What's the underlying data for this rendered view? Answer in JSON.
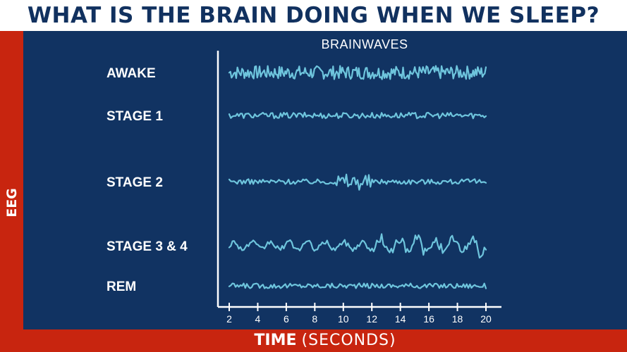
{
  "title": "WHAT IS THE BRAIN DOING WHEN WE SLEEP?",
  "left_label": "EEG",
  "x_axis_label": {
    "bold": "TIME",
    "light": "(SECONDS)"
  },
  "colors": {
    "title": "#11315f",
    "panel": "#113362",
    "band": "#c8250f",
    "wave": "#6ec5dd",
    "text": "#ffffff"
  },
  "chart_data": {
    "type": "line",
    "title": "BRAINWAVES",
    "xlabel": "TIME (SECONDS)",
    "x_ticks": [
      "2",
      "4",
      "6",
      "8",
      "10",
      "12",
      "14",
      "16",
      "18",
      "20"
    ],
    "xlim": [
      2,
      20
    ],
    "series": [
      {
        "name": "AWAKE",
        "pattern": "high-frequency, low-amplitude irregular activity",
        "amplitude": 0.8,
        "spikes": []
      },
      {
        "name": "STAGE 1",
        "pattern": "low-amplitude slow waves",
        "amplitude": 0.35,
        "spikes": []
      },
      {
        "name": "STAGE 2",
        "pattern": "low-amplitude waves with a sleep spindle burst around 10-12 s",
        "amplitude": 0.3,
        "spikes": [
          {
            "from": 9.5,
            "to": 12.0,
            "amplitude": 1.0
          }
        ]
      },
      {
        "name": "STAGE 3 & 4",
        "pattern": "high-amplitude slow waves, largest from about 12 s onward",
        "amplitude": 0.6,
        "spikes": [
          {
            "from": 12.0,
            "to": 20.0,
            "amplitude": 1.4
          }
        ]
      },
      {
        "name": "REM",
        "pattern": "low-amplitude, mixed-frequency activity",
        "amplitude": 0.3,
        "spikes": []
      }
    ]
  }
}
